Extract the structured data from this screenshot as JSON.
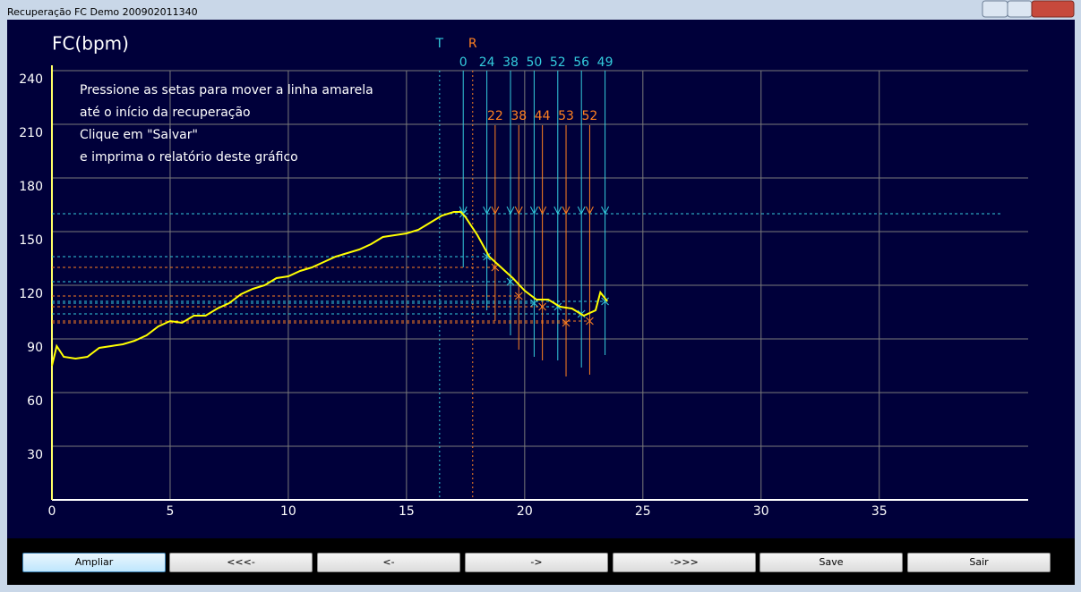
{
  "window": {
    "title": "Recuperação FC   Demo   200902011340"
  },
  "chart_data": {
    "type": "line",
    "title": "FC(bpm)",
    "instructions": [
      "Pressione as setas para mover a linha amarela",
      "até o início da recuperação",
      "Clique em \"Salvar\"",
      "e imprima o relatório deste gráfico"
    ],
    "xlim": [
      0,
      41.3
    ],
    "xticks": [
      0,
      5,
      10,
      15,
      20,
      25,
      30,
      35
    ],
    "ylim": [
      0,
      240
    ],
    "yticks": [
      30,
      60,
      90,
      120,
      150,
      180,
      210,
      240
    ],
    "grid": true,
    "line": {
      "color": "#ffff00",
      "x": [
        0,
        0.2,
        0.5,
        1,
        1.5,
        2,
        2.5,
        3,
        3.5,
        4,
        4.5,
        5,
        5.5,
        6,
        6.5,
        7,
        7.5,
        8,
        8.5,
        9,
        9.5,
        10,
        10.5,
        11,
        11.5,
        12,
        12.5,
        13,
        13.5,
        14,
        14.5,
        15,
        15.5,
        16,
        16.5,
        17,
        17.3,
        17.5,
        18,
        18.5,
        19,
        19.5,
        20,
        20.5,
        21,
        21.5,
        22,
        22.5,
        23,
        23.2,
        23.5
      ],
      "y": [
        75,
        86,
        80,
        79,
        80,
        85,
        86,
        87,
        89,
        92,
        97,
        100,
        99,
        103,
        103,
        107,
        110,
        115,
        118,
        120,
        124,
        125,
        128,
        130,
        133,
        136,
        138,
        140,
        143,
        147,
        148,
        149,
        151,
        155,
        159,
        161,
        161,
        158,
        148,
        136,
        130,
        124,
        117,
        112,
        112,
        108,
        107,
        103,
        106,
        116,
        111
      ]
    },
    "annotations": [
      {
        "text": "T",
        "x": 16.4,
        "color": "#33ccdd"
      },
      {
        "text": "R",
        "x": 17.8,
        "color": "#ff8020"
      }
    ],
    "cyan_marks": {
      "color": "#33ccdd",
      "x": [
        17.4,
        18.4,
        19.4,
        20.4,
        21.4,
        22.4,
        23.4
      ],
      "hr": [
        160,
        136,
        122,
        110,
        108,
        104,
        111
      ],
      "labels": [
        0,
        24,
        38,
        50,
        52,
        56,
        49
      ]
    },
    "orange_marks": {
      "color": "#ff8020",
      "x": [
        18.75,
        19.75,
        20.75,
        21.75,
        22.75
      ],
      "hr": [
        130,
        114,
        108,
        99,
        100
      ],
      "labels": [
        22,
        38,
        44,
        53,
        52
      ]
    }
  },
  "buttons": [
    "Ampliar",
    "<<<-",
    "<-",
    "->",
    "->>>",
    "Save",
    "Sair"
  ]
}
